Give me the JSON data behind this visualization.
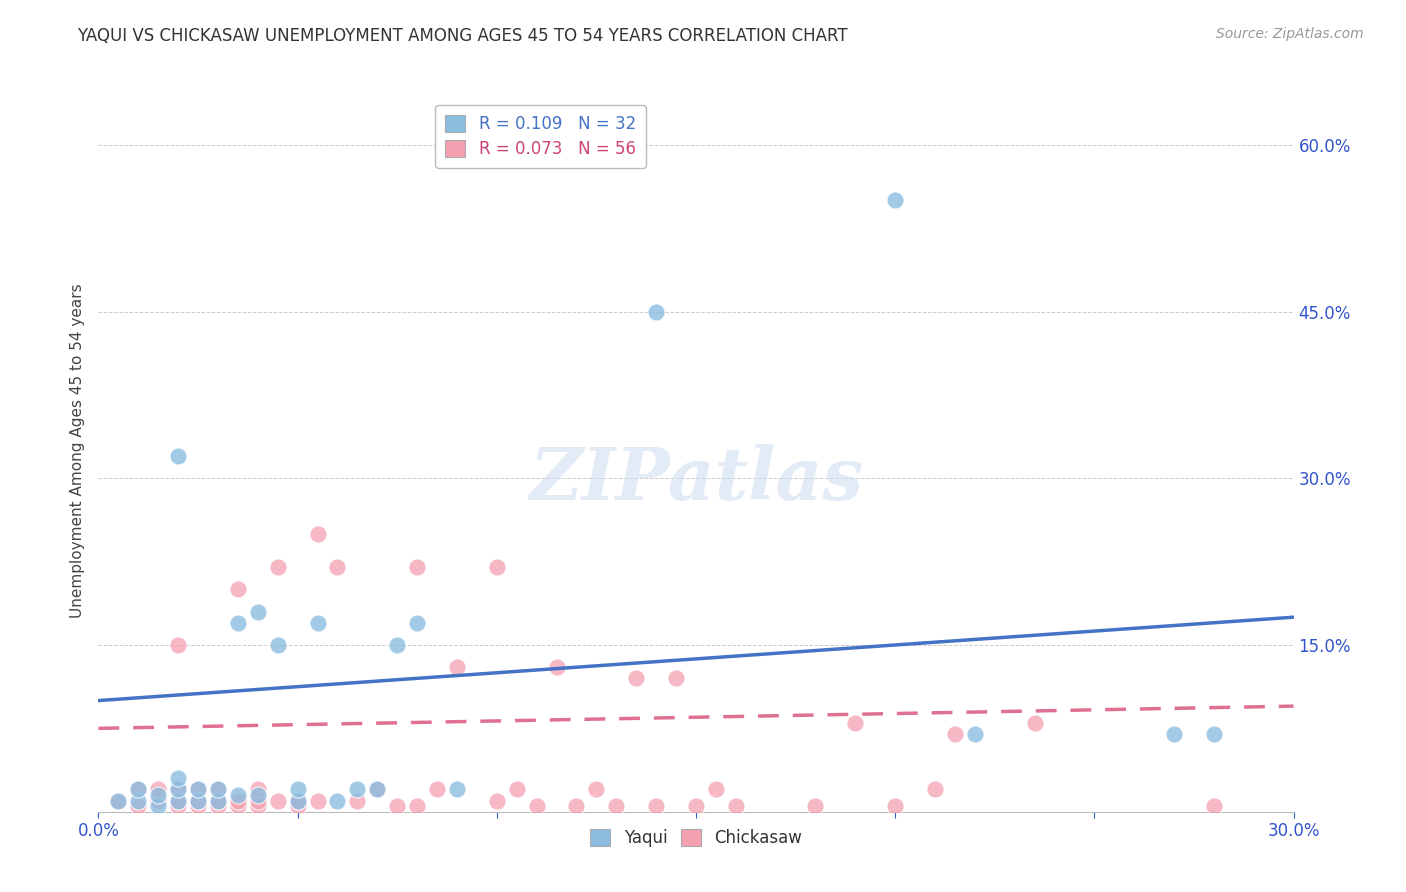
{
  "title": "YAQUI VS CHICKASAW UNEMPLOYMENT AMONG AGES 45 TO 54 YEARS CORRELATION CHART",
  "source_text": "Source: ZipAtlas.com",
  "ylabel": "Unemployment Among Ages 45 to 54 years",
  "xlim": [
    0.0,
    0.3
  ],
  "ylim": [
    0.0,
    0.65
  ],
  "xticks": [
    0.0,
    0.05,
    0.1,
    0.15,
    0.2,
    0.25,
    0.3
  ],
  "yticks_right": [
    0.0,
    0.15,
    0.3,
    0.45,
    0.6
  ],
  "ytick_labels_right": [
    "",
    "15.0%",
    "30.0%",
    "45.0%",
    "60.0%"
  ],
  "legend_r1": "R = 0.109",
  "legend_n1": "N = 32",
  "legend_r2": "R = 0.073",
  "legend_n2": "N = 56",
  "yaqui_color": "#8bbde0",
  "chickasaw_color": "#f4a0b0",
  "trend_blue": "#4472c4",
  "trend_pink": "#e07090",
  "yaqui_x": [
    0.005,
    0.01,
    0.01,
    0.015,
    0.015,
    0.02,
    0.02,
    0.02,
    0.02,
    0.025,
    0.025,
    0.03,
    0.03,
    0.035,
    0.035,
    0.04,
    0.04,
    0.045,
    0.05,
    0.05,
    0.055,
    0.06,
    0.065,
    0.07,
    0.075,
    0.08,
    0.09,
    0.14,
    0.2,
    0.22,
    0.27,
    0.28
  ],
  "yaqui_y": [
    0.01,
    0.01,
    0.02,
    0.005,
    0.015,
    0.01,
    0.02,
    0.03,
    0.32,
    0.01,
    0.02,
    0.01,
    0.02,
    0.015,
    0.17,
    0.015,
    0.18,
    0.15,
    0.01,
    0.02,
    0.17,
    0.01,
    0.02,
    0.02,
    0.15,
    0.17,
    0.02,
    0.45,
    0.55,
    0.07,
    0.07,
    0.07
  ],
  "chickasaw_x": [
    0.005,
    0.01,
    0.01,
    0.015,
    0.015,
    0.02,
    0.02,
    0.02,
    0.02,
    0.025,
    0.025,
    0.025,
    0.03,
    0.03,
    0.03,
    0.035,
    0.035,
    0.035,
    0.04,
    0.04,
    0.04,
    0.045,
    0.045,
    0.05,
    0.05,
    0.055,
    0.055,
    0.06,
    0.065,
    0.07,
    0.075,
    0.08,
    0.08,
    0.085,
    0.09,
    0.1,
    0.1,
    0.105,
    0.11,
    0.115,
    0.12,
    0.125,
    0.13,
    0.135,
    0.14,
    0.145,
    0.15,
    0.155,
    0.16,
    0.18,
    0.19,
    0.2,
    0.21,
    0.215,
    0.235,
    0.28
  ],
  "chickasaw_y": [
    0.01,
    0.005,
    0.02,
    0.01,
    0.02,
    0.005,
    0.01,
    0.02,
    0.15,
    0.005,
    0.01,
    0.02,
    0.005,
    0.01,
    0.02,
    0.005,
    0.01,
    0.2,
    0.005,
    0.01,
    0.02,
    0.01,
    0.22,
    0.005,
    0.01,
    0.01,
    0.25,
    0.22,
    0.01,
    0.02,
    0.005,
    0.005,
    0.22,
    0.02,
    0.13,
    0.01,
    0.22,
    0.02,
    0.005,
    0.13,
    0.005,
    0.02,
    0.005,
    0.12,
    0.005,
    0.12,
    0.005,
    0.02,
    0.005,
    0.005,
    0.08,
    0.005,
    0.02,
    0.07,
    0.08,
    0.005
  ],
  "trend_yaqui_x0": 0.0,
  "trend_yaqui_y0": 0.1,
  "trend_yaqui_x1": 0.3,
  "trend_yaqui_y1": 0.175,
  "trend_chick_x0": 0.0,
  "trend_chick_y0": 0.075,
  "trend_chick_x1": 0.3,
  "trend_chick_y1": 0.095
}
